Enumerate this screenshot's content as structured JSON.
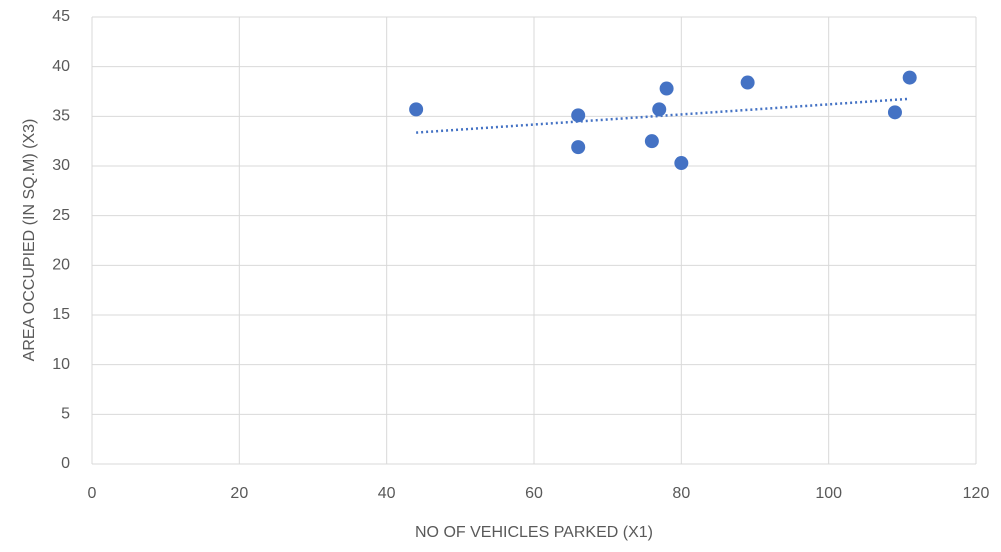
{
  "chart_data": {
    "type": "scatter",
    "x_label": "NO OF VEHICLES PARKED (X1)",
    "y_label": "AREA OCCUPIED (IN SQ.M) (X3)",
    "x": [
      44,
      66,
      66,
      76,
      77,
      78,
      80,
      89,
      109,
      111
    ],
    "values": [
      35.7,
      35.1,
      31.9,
      32.5,
      35.7,
      37.8,
      30.3,
      38.4,
      35.4,
      38.9
    ],
    "color": "#4472c4",
    "trendline": "linear",
    "xlim": [
      0,
      120
    ],
    "xticks": [
      0,
      20,
      40,
      60,
      80,
      100,
      120
    ],
    "ylim": [
      0,
      45
    ],
    "yticks": [
      0,
      5,
      10,
      15,
      20,
      25,
      30,
      35,
      40,
      45
    ],
    "grid": true
  }
}
